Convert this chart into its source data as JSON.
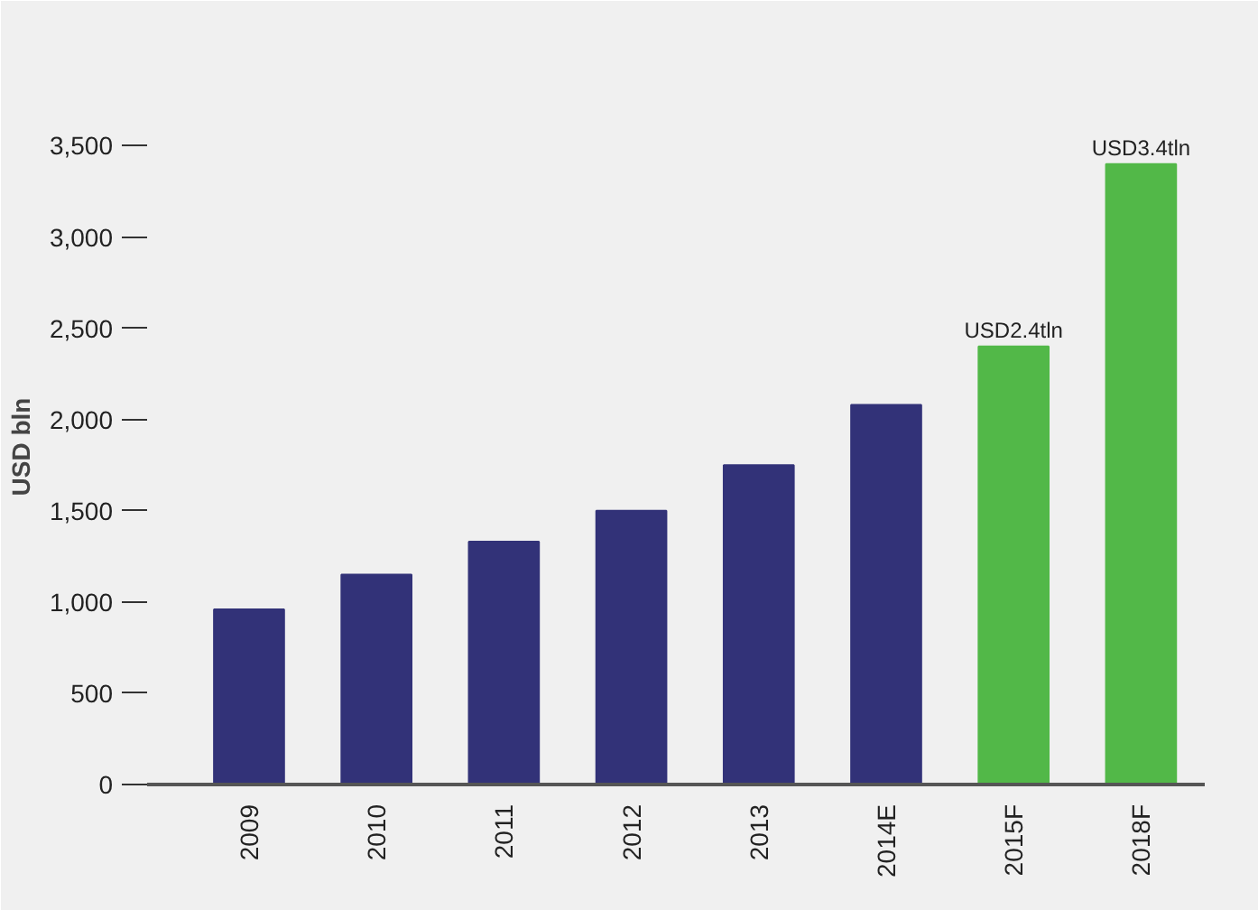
{
  "chart_data": {
    "type": "bar",
    "ylabel": "USD bln",
    "categories": [
      "2009",
      "2010",
      "2011",
      "2012",
      "2013",
      "2014E",
      "2015F",
      "2018F"
    ],
    "values": [
      960,
      1150,
      1330,
      1500,
      1750,
      2080,
      2400,
      3400
    ],
    "colors": [
      "#323278",
      "#323278",
      "#323278",
      "#323278",
      "#323278",
      "#323278",
      "#52b848",
      "#52b848"
    ],
    "value_labels": [
      null,
      null,
      null,
      null,
      null,
      null,
      "USD2.4tln",
      "USD3.4tln"
    ],
    "ylim": [
      0,
      3700
    ],
    "yticks": [
      0,
      {
        "value": 500,
        "label": "500"
      },
      {
        "value": 1000,
        "label": "1,000"
      },
      {
        "value": 1500,
        "label": "1,500"
      },
      {
        "value": 2000,
        "label": "2,000"
      },
      {
        "value": 2500,
        "label": "2,500"
      },
      {
        "value": 3000,
        "label": "3,000"
      },
      {
        "value": 3500,
        "label": "3,500"
      }
    ],
    "grid": false
  }
}
